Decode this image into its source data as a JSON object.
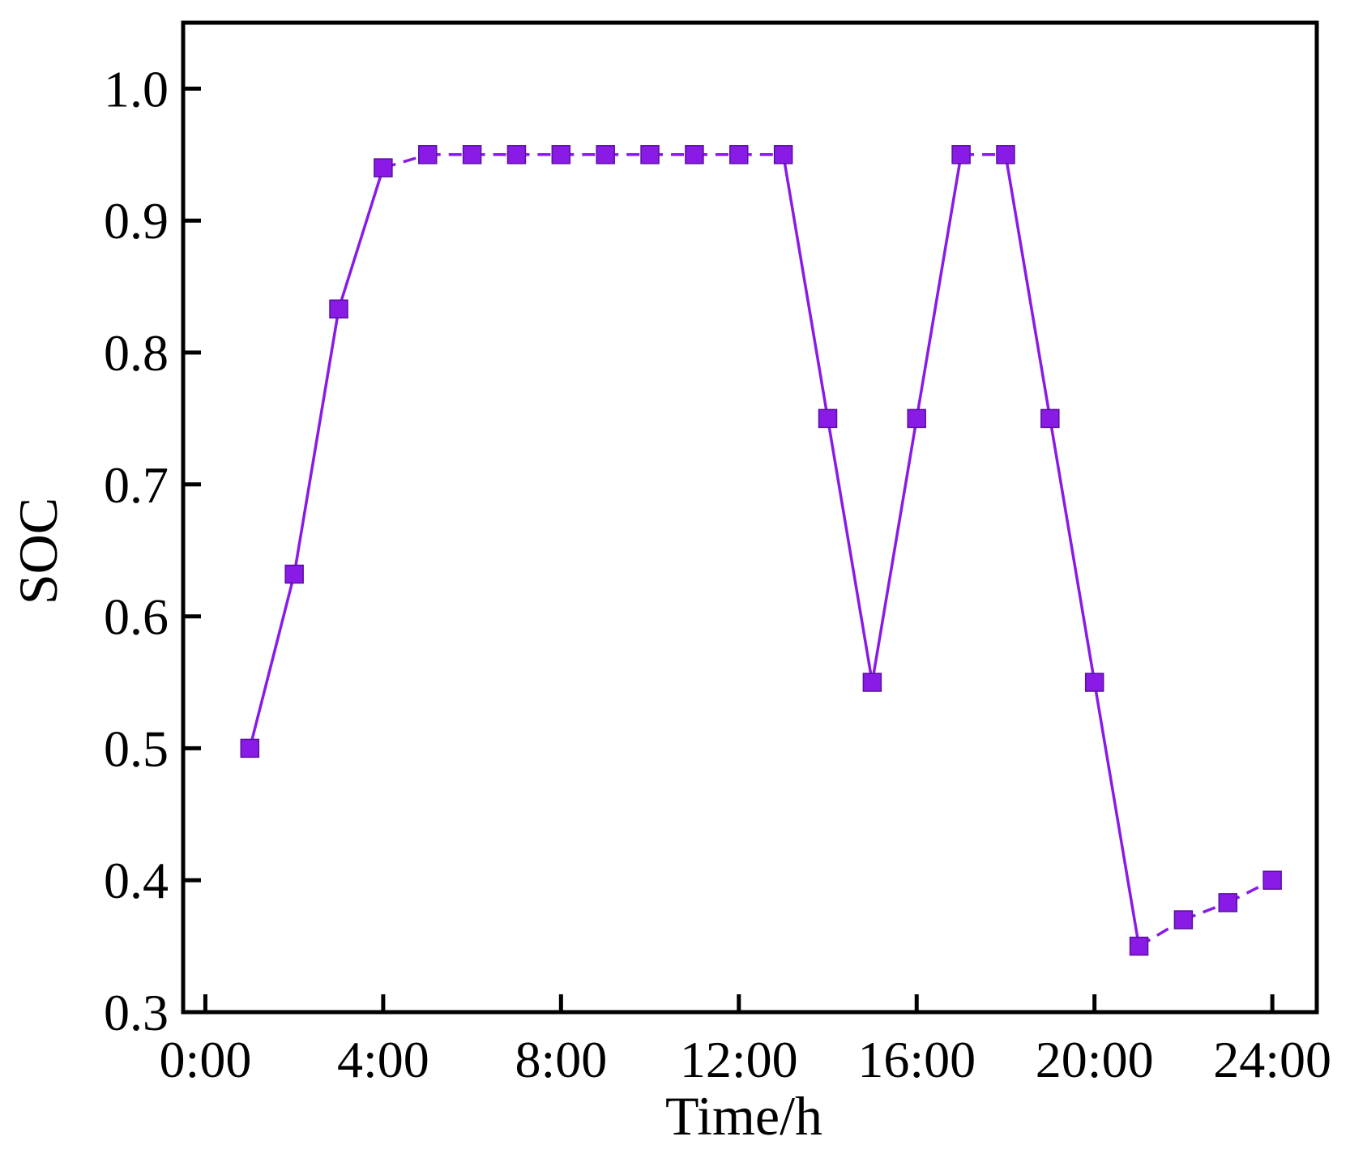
{
  "chart_data": {
    "type": "line",
    "title": "",
    "xlabel": "Time/h",
    "ylabel": "SOC",
    "xlim": [
      -0.5,
      25
    ],
    "ylim": [
      0.3,
      1.05
    ],
    "xticks": [
      {
        "value": 0,
        "label": "0:00"
      },
      {
        "value": 4,
        "label": "4:00"
      },
      {
        "value": 8,
        "label": "8:00"
      },
      {
        "value": 12,
        "label": "12:00"
      },
      {
        "value": 16,
        "label": "16:00"
      },
      {
        "value": 20,
        "label": "20:00"
      },
      {
        "value": 24,
        "label": "24:00"
      }
    ],
    "yticks": [
      {
        "value": 0.3,
        "label": "0.3"
      },
      {
        "value": 0.4,
        "label": "0.4"
      },
      {
        "value": 0.5,
        "label": "0.5"
      },
      {
        "value": 0.6,
        "label": "0.6"
      },
      {
        "value": 0.7,
        "label": "0.7"
      },
      {
        "value": 0.8,
        "label": "0.8"
      },
      {
        "value": 0.9,
        "label": "0.9"
      },
      {
        "value": 1.0,
        "label": "1.0"
      }
    ],
    "grid": false,
    "legend": false,
    "series": [
      {
        "color": "#8a1ae6",
        "line_color": "#8a1ae6",
        "marker": "square",
        "x": [
          1,
          2,
          3,
          4,
          5,
          6,
          7,
          8,
          9,
          10,
          11,
          12,
          13,
          14,
          15,
          16,
          17,
          18,
          19,
          20,
          21,
          22,
          23,
          24
        ],
        "y": [
          0.5,
          0.632,
          0.833,
          0.94,
          0.95,
          0.95,
          0.95,
          0.95,
          0.95,
          0.95,
          0.95,
          0.95,
          0.95,
          0.75,
          0.55,
          0.75,
          0.95,
          0.95,
          0.75,
          0.55,
          0.35,
          0.37,
          0.383,
          0.4
        ],
        "segment_styles": [
          "solid",
          "solid",
          "solid",
          "dashed",
          "dashed",
          "dashed",
          "dashed",
          "dashed",
          "dashed",
          "dashed",
          "dashed",
          "dashed",
          "solid",
          "solid",
          "solid",
          "solid",
          "dashed",
          "solid",
          "solid",
          "solid",
          "dashed",
          "dashed",
          "dashed"
        ]
      }
    ]
  }
}
